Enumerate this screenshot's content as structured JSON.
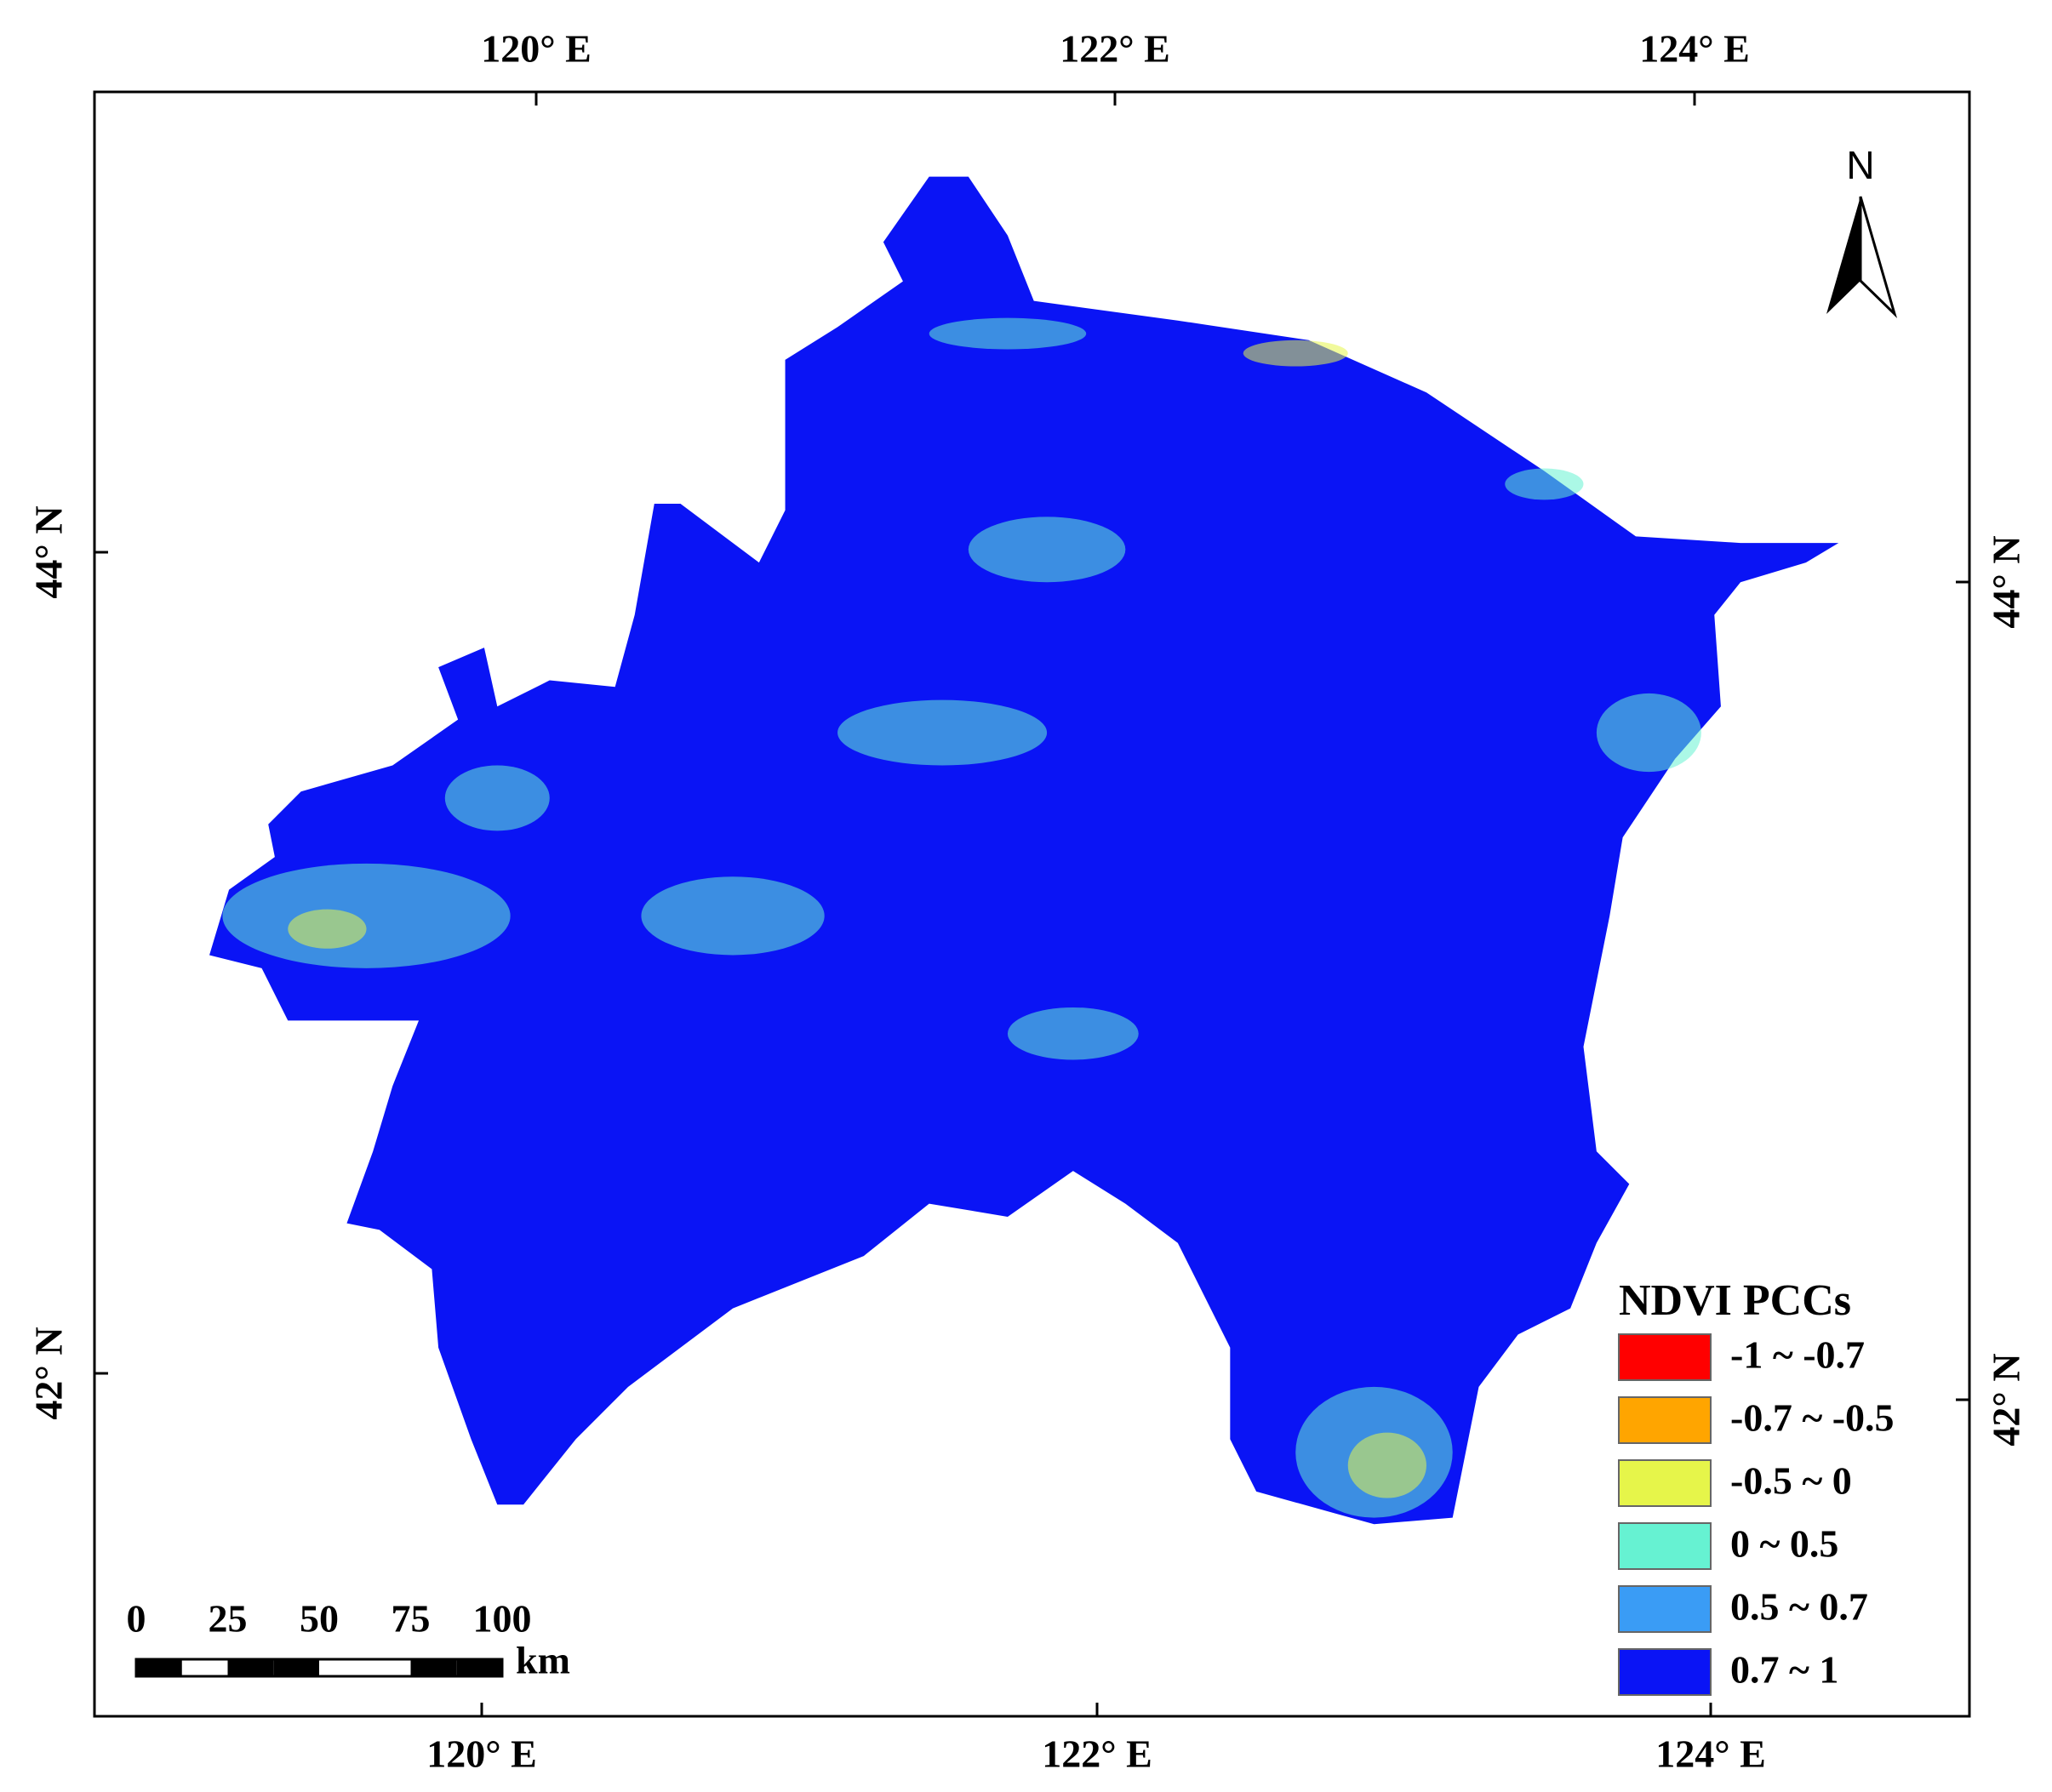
{
  "map": {
    "top_labels": [
      "120° E",
      "122° E",
      "124° E"
    ],
    "bottom_labels": [
      "120° E",
      "122° E",
      "124° E"
    ],
    "left_labels": [
      "44° N",
      "42° N"
    ],
    "right_labels": [
      "44° N",
      "42° N"
    ],
    "north": "N",
    "scale_bar": {
      "ticks": [
        "0",
        "25",
        "50",
        "75",
        "100"
      ],
      "unit": "km"
    },
    "legend": {
      "title": "NDVI PCCs",
      "items": [
        {
          "label": "-1 ~ -0.7",
          "color": "#ff0000"
        },
        {
          "label": "-0.7 ~ -0.5",
          "color": "#ffa500"
        },
        {
          "label": "-0.5 ~ 0",
          "color": "#e6f54a"
        },
        {
          "label": "0 ~ 0.5",
          "color": "#66f2d2"
        },
        {
          "label": "0.5 ~ 0.7",
          "color": "#3a9cf5"
        },
        {
          "label": "0.7 ~ 1",
          "color": "#0a14f5"
        }
      ]
    }
  }
}
